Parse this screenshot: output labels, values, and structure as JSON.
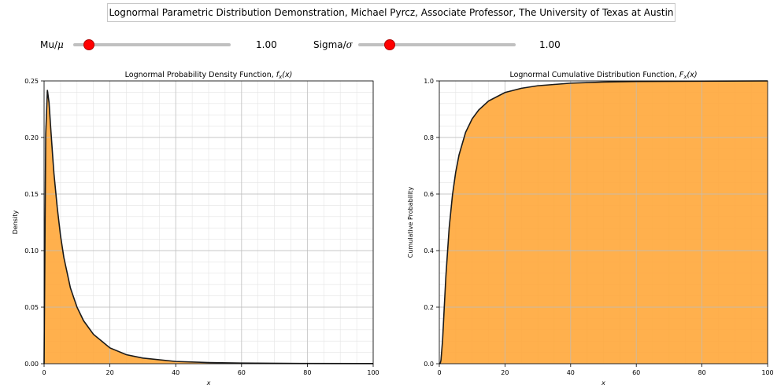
{
  "header": {
    "title": "Lognormal Parametric Distribution Demonstration, Michael Pyrcz, Associate Professor, The University of Texas at Austin"
  },
  "controls": {
    "mu": {
      "label": "Mu/",
      "symbol": "μ",
      "value": "1.00",
      "min": 0,
      "max": 10,
      "current": 1.0
    },
    "sigma": {
      "label": "Sigma/",
      "symbol": "σ",
      "value": "1.00",
      "min": 0,
      "max": 5,
      "current": 1.0
    }
  },
  "colors": {
    "fill": "#ffa534",
    "line": "#1a1a1a",
    "grid": "#bdbdbd",
    "knob": "#ff0000"
  },
  "chart_data": [
    {
      "type": "area",
      "title_prefix": "Lognormal Probability Density Function, ",
      "title_math": "f",
      "title_sub": "x",
      "title_suffix": "(x)",
      "xlabel": "x",
      "ylabel": "Density",
      "xlim": [
        0,
        100
      ],
      "ylim": [
        0,
        0.25
      ],
      "xticks": [
        "0",
        "20",
        "40",
        "60",
        "80",
        "100"
      ],
      "yticks": [
        "0.00",
        "0.05",
        "0.10",
        "0.15",
        "0.20",
        "0.25"
      ],
      "grid": true,
      "series": [
        {
          "x": [
            0,
            0.5,
            1.0,
            1.5,
            2.0,
            2.718,
            3.0,
            4.0,
            5.0,
            6.0,
            8.0,
            10.0,
            12.0,
            15.0,
            20.0,
            25.0,
            30.0,
            40.0,
            50.0,
            60.0,
            80.0,
            100.0
          ],
          "y": [
            0,
            0.203,
            0.242,
            0.231,
            0.209,
            0.179,
            0.168,
            0.138,
            0.113,
            0.094,
            0.067,
            0.05,
            0.038,
            0.026,
            0.014,
            0.008,
            0.005,
            0.002,
            0.001,
            0.0006,
            0.0002,
            0.0001
          ]
        }
      ]
    },
    {
      "type": "area",
      "title_prefix": "Lognormal Cumulative Distribution Function, ",
      "title_math": "F",
      "title_sub": "x",
      "title_suffix": "(x)",
      "xlabel": "x",
      "ylabel": "Cumulative Probability",
      "xlim": [
        0,
        100
      ],
      "ylim": [
        0,
        1.0
      ],
      "xticks": [
        "0",
        "20",
        "40",
        "60",
        "80",
        "100"
      ],
      "yticks": [
        "0.0",
        "0.2",
        "0.4",
        "0.6",
        "0.8",
        "1.0"
      ],
      "grid": true,
      "series": [
        {
          "x": [
            0,
            0.3,
            0.5,
            1.0,
            1.5,
            2.0,
            3.0,
            4.0,
            5.0,
            6.0,
            8.0,
            10.0,
            12.0,
            15.0,
            20.0,
            25.0,
            30.0,
            40.0,
            50.0,
            60.0,
            80.0,
            100.0
          ],
          "y": [
            0,
            0.002,
            0.012,
            0.084,
            0.198,
            0.309,
            0.48,
            0.596,
            0.678,
            0.738,
            0.818,
            0.866,
            0.897,
            0.929,
            0.959,
            0.974,
            0.983,
            0.992,
            0.996,
            0.998,
            0.999,
            1.0
          ]
        }
      ]
    }
  ]
}
